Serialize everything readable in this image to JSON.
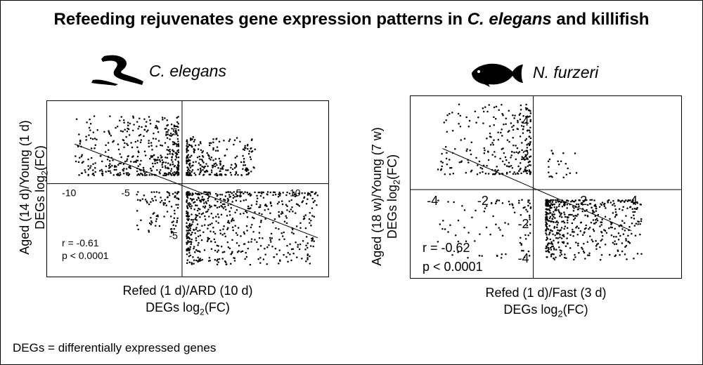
{
  "title": {
    "prefix": "Refeeding rejuvenates gene expression patterns in ",
    "species1": "C. elegans",
    "middle": " and killifish"
  },
  "footnote": "DEGs = differentially expressed genes",
  "icons": {
    "left": "worm-silhouette-icon",
    "right": "fish-silhouette-icon"
  },
  "chart_data": [
    {
      "type": "scatter",
      "species": "C. elegans",
      "ylabel_line1": "Aged (14 d)/Young (1 d)",
      "ylabel_line2": "DEGs log",
      "xlabel_line1": "Refed (1 d)/ARD (10 d)",
      "xlabel_line2": "DEGs log",
      "label_suffix_sub": "2",
      "label_suffix": "(FC)",
      "xlim": [
        -12,
        13
      ],
      "ylim": [
        -9,
        8
      ],
      "x_ticks": [
        -10,
        -5,
        5,
        10
      ],
      "x_tick_labels": [
        "-10",
        "-5",
        "5",
        "10"
      ],
      "y_ticks": [
        5,
        -5
      ],
      "y_tick_labels": [
        "5",
        "-5"
      ],
      "stat_r": "r = -0.61",
      "stat_p": "p < 0.0001",
      "fit_line": {
        "x": [
          -9.5,
          12
        ],
        "y": [
          3.8,
          -5.2
        ]
      },
      "clusters": [
        {
          "quadrant": "top-left",
          "x_range": [
            -9.5,
            -0.3
          ],
          "y_range": [
            0.8,
            6.5
          ],
          "n": 420
        },
        {
          "quadrant": "top-right",
          "x_range": [
            0.4,
            6.5
          ],
          "y_range": [
            0.8,
            4.5
          ],
          "n": 260
        },
        {
          "quadrant": "bottom-left",
          "x_range": [
            -4,
            -0.3
          ],
          "y_range": [
            -5.3,
            -0.8
          ],
          "n": 90
        },
        {
          "quadrant": "bottom-right",
          "x_range": [
            0.4,
            12
          ],
          "y_range": [
            -7.8,
            -0.8
          ],
          "n": 620
        }
      ],
      "grid": false
    },
    {
      "type": "scatter",
      "species": "N. furzeri",
      "ylabel_line1": "Aged (18 w)/Young (7 w)",
      "ylabel_line2": "DEGs log",
      "xlabel_line1": "Refed (1 d)/Fast (3 d)",
      "xlabel_line2": "DEGs log",
      "label_suffix_sub": "2",
      "label_suffix": "(FC)",
      "xlim": [
        -4.9,
        5.9
      ],
      "ylim": [
        -5.2,
        5.5
      ],
      "x_ticks": [
        -4,
        -2,
        2,
        4
      ],
      "x_tick_labels": [
        "-4",
        "-2",
        "2",
        "4"
      ],
      "y_ticks": [
        4,
        2,
        -2,
        -4
      ],
      "y_tick_labels": [
        "4",
        "2",
        "-2",
        "-4"
      ],
      "stat_r": "r = -0.62",
      "stat_p": "p < 0.0001",
      "fit_line": {
        "x": [
          -3.6,
          3.9
        ],
        "y": [
          2.4,
          -2.4
        ]
      },
      "clusters": [
        {
          "quadrant": "top-left",
          "x_range": [
            -3.8,
            -0.1
          ],
          "y_range": [
            0.9,
            5.0
          ],
          "n": 260
        },
        {
          "quadrant": "top-right",
          "x_range": [
            0.6,
            1.8
          ],
          "y_range": [
            0.7,
            2.5
          ],
          "n": 22
        },
        {
          "quadrant": "bottom-left",
          "x_range": [
            -3.8,
            -0.1
          ],
          "y_range": [
            -4.0,
            -0.6
          ],
          "n": 90
        },
        {
          "quadrant": "bottom-right",
          "x_range": [
            0.5,
            4.3
          ],
          "y_range": [
            -4.1,
            -0.6
          ],
          "n": 520
        }
      ],
      "grid": false
    }
  ]
}
